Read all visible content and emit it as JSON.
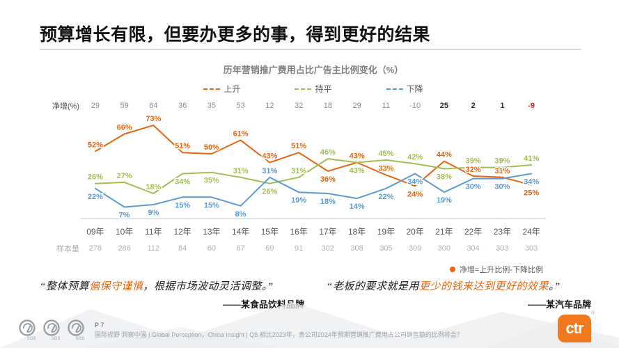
{
  "header": {
    "title": "预算增长有限，但要办更多的事，得到更好的结果"
  },
  "chart_data": {
    "type": "line",
    "title": "历年营销推广费用占比广告主比例变化（%）",
    "categories": [
      "09年",
      "10年",
      "11年",
      "12年",
      "13年",
      "14年",
      "15年",
      "16年",
      "17年",
      "18年",
      "19年",
      "20年",
      "21年",
      "22年",
      "23年",
      "24年"
    ],
    "series": [
      {
        "name": "上升",
        "color": "#e8650e",
        "values": [
          52,
          66,
          73,
          51,
          50,
          61,
          43,
          51,
          36,
          43,
          33,
          24,
          44,
          32,
          31,
          25
        ]
      },
      {
        "name": "持平",
        "color": "#a2be4e",
        "values": [
          26,
          27,
          18,
          34,
          35,
          31,
          26,
          31,
          46,
          43,
          45,
          42,
          38,
          39,
          39,
          41
        ]
      },
      {
        "name": "下降",
        "color": "#5b9bd5",
        "values": [
          22,
          7,
          9,
          15,
          15,
          8,
          31,
          19,
          18,
          14,
          22,
          34,
          19,
          30,
          30,
          34
        ]
      }
    ],
    "net_increase": {
      "label": "净增(%)",
      "values": [
        29,
        59,
        64,
        36,
        35,
        53,
        12,
        32,
        18,
        29,
        11,
        -10,
        25,
        2,
        1,
        -9
      ],
      "value_colors": [
        "grey",
        "grey",
        "grey",
        "grey",
        "grey",
        "grey",
        "grey",
        "grey",
        "grey",
        "grey",
        "grey",
        "grey",
        "dark",
        "dark",
        "dark",
        "red"
      ]
    },
    "samples": {
      "label": "样本量",
      "values": [
        278,
        286,
        112,
        84,
        60,
        67,
        69,
        91,
        302,
        308,
        305,
        309,
        300,
        304,
        303,
        303
      ]
    },
    "note": "净增=上升比例-下降比例",
    "ylim": [
      0,
      80
    ],
    "grid": false,
    "legend_position": "top",
    "value_labels": true
  },
  "quotes": [
    {
      "pre": "“整体预算",
      "highlight": "偏保守谨慎",
      "post": "，根据市场波动灵活调整。”",
      "attribution": "——某食品饮料品牌"
    },
    {
      "pre": "“老板的要求就是用",
      "highlight": "更少的钱来达到更好的效果",
      "post": "。”",
      "attribution": "——某汽车品牌"
    }
  ],
  "footer": {
    "page": "P 7",
    "source": "国际视野 洞察中国 | Global Perception，China Insight | Q8.相比2023年，贵公司2024年预期营销推广费用占公司销售额的比例将会？",
    "logo_text": "ctr",
    "logo_reg": "®",
    "cert_logos": [
      "SGS",
      "SGS",
      "SGS"
    ]
  },
  "colors": {
    "accent_orange": "#e8650e",
    "green": "#a2be4e",
    "blue": "#5b9bd5",
    "net_red": "#e02020"
  }
}
